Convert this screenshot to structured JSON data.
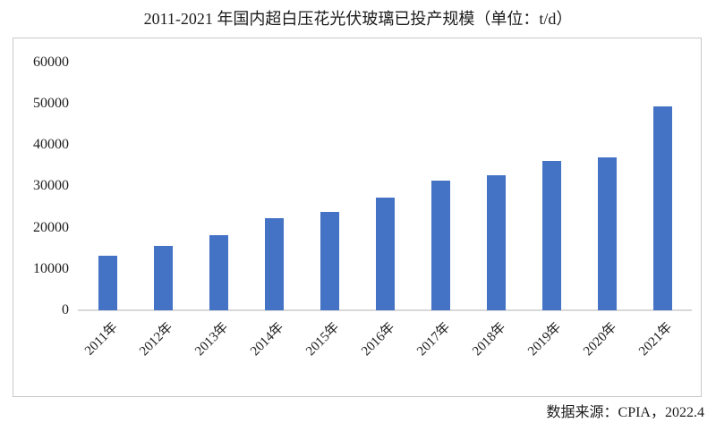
{
  "page": {
    "title": "2011-2021 年国内超白压花光伏玻璃已投产规模（单位：t/d）",
    "source": "数据来源：CPIA，2022.4"
  },
  "colors": {
    "bar": "#4473C5",
    "box_border": "#c9c9c9",
    "axis_line": "#d9d9d9",
    "text": "#1c1c1c",
    "background": "#ffffff"
  },
  "chart_data": {
    "type": "bar",
    "title": "2011-2021 年国内超白压花光伏玻璃已投产规模（单位：t/d）",
    "unit": "t/d",
    "categories": [
      "2011年",
      "2012年",
      "2013年",
      "2014年",
      "2015年",
      "2016年",
      "2017年",
      "2018年",
      "2019年",
      "2020年",
      "2021年"
    ],
    "values": [
      13200,
      15500,
      18200,
      22400,
      23800,
      27200,
      31500,
      32600,
      36100,
      37000,
      49300
    ],
    "xlabel": "",
    "ylabel": "",
    "ylim": [
      0,
      60000
    ],
    "ytick_interval": 10000,
    "yticks": [
      60000,
      50000,
      40000,
      30000,
      20000,
      10000,
      0
    ],
    "grid": false,
    "legend": false,
    "bar_color": "#4473C5",
    "source": "数据来源：CPIA，2022.4"
  }
}
